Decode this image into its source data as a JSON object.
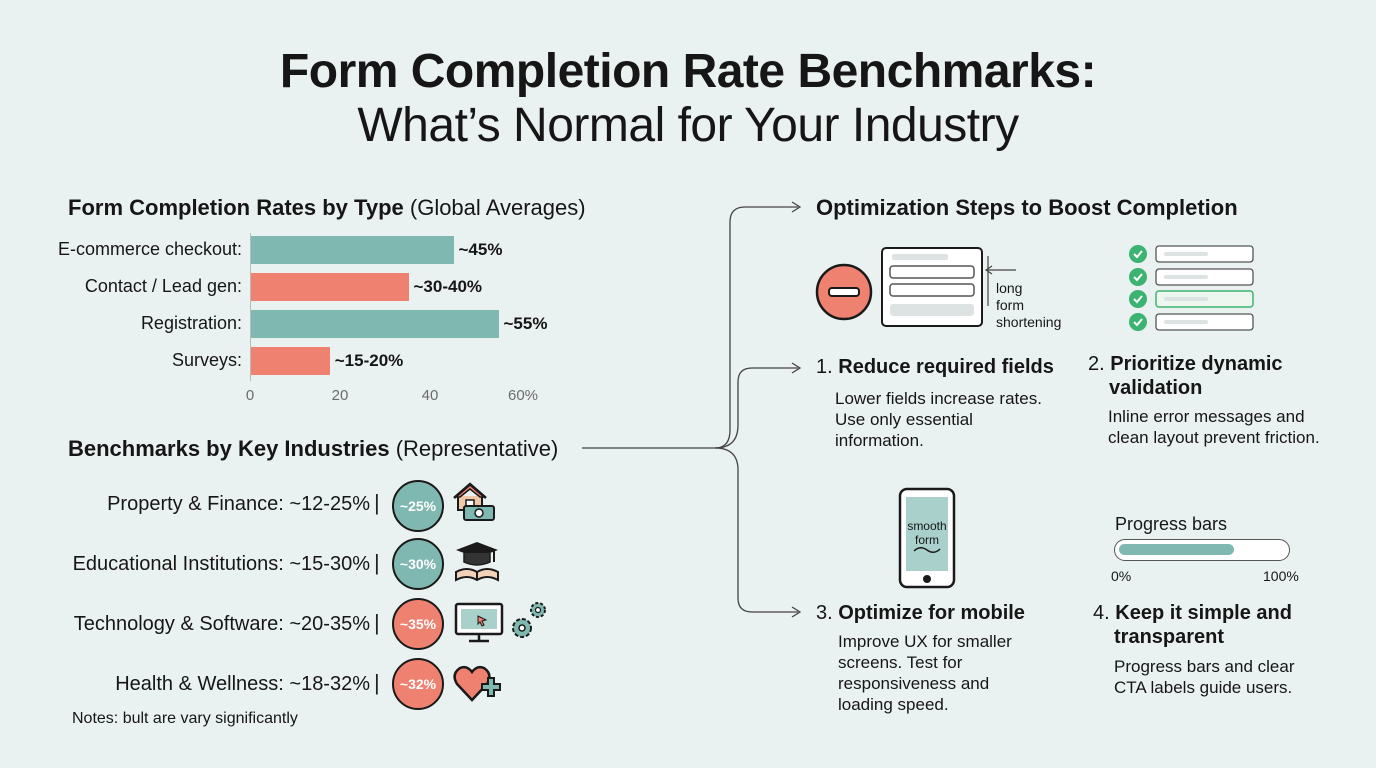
{
  "title": {
    "line1": "Form Completion Rate Benchmarks:",
    "line2": "What’s Normal for Your Industry"
  },
  "type_section": {
    "title": "Form Completion Rates by Type",
    "subtitle": "(Global Averages)"
  },
  "chart_data": {
    "type": "bar",
    "orientation": "horizontal",
    "title": "Form Completion Rates by Type (Global Averages)",
    "categories": [
      "E-commerce checkout:",
      "Contact / Lead gen:",
      "Registration:",
      "Surveys:"
    ],
    "values": [
      45,
      35,
      55,
      17.5
    ],
    "value_labels": [
      "~45%",
      "~30-40%",
      "~55%",
      "~15-20%"
    ],
    "colors": [
      "#7fb8b0",
      "#ef8170",
      "#7fb8b0",
      "#ef8170"
    ],
    "xlim": [
      0,
      60
    ],
    "ticks": [
      "0",
      "20",
      "40",
      "60%"
    ],
    "tick_values": [
      0,
      20,
      40,
      60
    ],
    "grid": false
  },
  "industries": {
    "title": "Benchmarks by Key Industries",
    "subtitle": "(Representative)",
    "items": [
      {
        "label": "Property & Finance: ~12-25%",
        "badge": "~25%",
        "color": "#7fb8b0",
        "icon": "house-money-icon"
      },
      {
        "label": "Educational Institutions: ~15-30%",
        "badge": "~30%",
        "color": "#7fb8b0",
        "icon": "graduation-cap-icon"
      },
      {
        "label": "Technology & Software: ~20-35%",
        "badge": "~35%",
        "color": "#ef8170",
        "icon": "computer-gear-icon"
      },
      {
        "label": "Health & Wellness: ~18-32%",
        "badge": "~32%",
        "color": "#ef8170",
        "icon": "heart-plus-icon"
      }
    ],
    "separator": "|",
    "notes": "Notes: bult are vary significantly"
  },
  "optimization": {
    "title": "Optimization Steps to Boost Completion",
    "illustration1_caption": [
      "long",
      "form",
      "shortening"
    ],
    "phone_caption": [
      "smooth",
      "form"
    ],
    "progress": {
      "label": "Progress bars",
      "min": "0%",
      "max": "100%",
      "fill": 0.7
    },
    "steps": [
      {
        "num": "1.",
        "title": "Reduce required fields",
        "desc": [
          "Lower fields increase rates.",
          "Use only essential",
          "information."
        ]
      },
      {
        "num": "2.",
        "title": "Prioritize dynamic",
        "title2": "validation",
        "desc": [
          "Inline error messages and",
          "clean layout prevent friction."
        ]
      },
      {
        "num": "3.",
        "title": "Optimize for mobile",
        "desc": [
          "Improve UX for smaller",
          "screens. Test for",
          "responsiveness and",
          "loading speed."
        ]
      },
      {
        "num": "4.",
        "title": "Keep it simple and",
        "title2": "transparent",
        "desc": [
          "Progress bars and clear",
          "CTA labels guide users."
        ]
      }
    ]
  },
  "colors": {
    "teal": "#7fb8b0",
    "coral": "#ef8170",
    "green": "#3cb371",
    "background": "#eaf2f1"
  }
}
